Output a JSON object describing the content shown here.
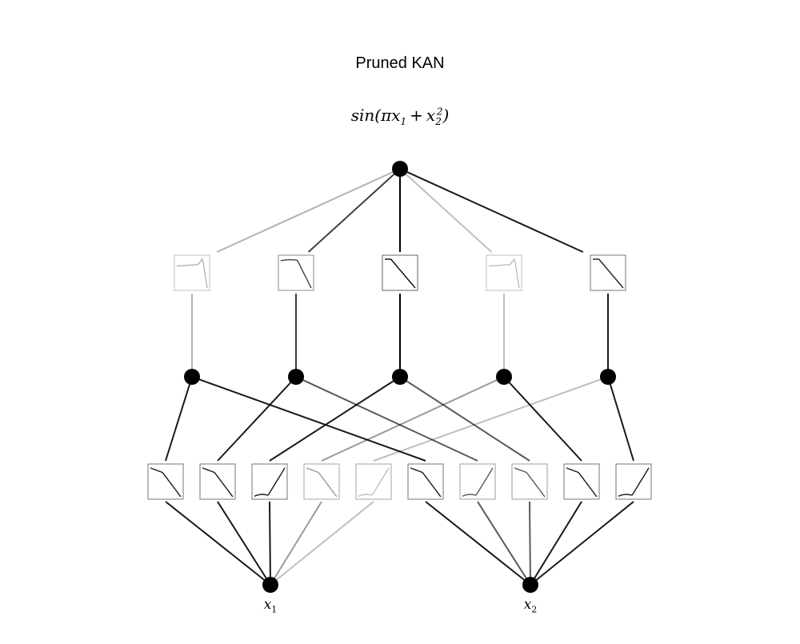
{
  "title": "Pruned KAN",
  "formula": {
    "func": "sin",
    "open": "(",
    "pi": "π",
    "var1": "x",
    "sub1": "1",
    "plus": "+",
    "var2": "x",
    "sub2": "2",
    "sup2": "2",
    "close": ")"
  },
  "inputs": [
    {
      "symbol": "x",
      "subscript": "1"
    },
    {
      "symbol": "x",
      "subscript": "2"
    }
  ],
  "network": {
    "layers": [
      2,
      5,
      1
    ],
    "layer1_edges": [
      {
        "from": 0,
        "to": 0,
        "shape": "decreasing",
        "opacity": 0.9
      },
      {
        "from": 0,
        "to": 1,
        "shape": "decreasing",
        "opacity": 0.9
      },
      {
        "from": 0,
        "to": 2,
        "shape": "increasing",
        "opacity": 0.9
      },
      {
        "from": 0,
        "to": 3,
        "shape": "decreasing",
        "opacity": 0.4
      },
      {
        "from": 0,
        "to": 4,
        "shape": "increasing",
        "opacity": 0.25
      },
      {
        "from": 1,
        "to": 0,
        "shape": "decreasing",
        "opacity": 0.9
      },
      {
        "from": 1,
        "to": 1,
        "shape": "increasing",
        "opacity": 0.65
      },
      {
        "from": 1,
        "to": 2,
        "shape": "decreasing",
        "opacity": 0.65
      },
      {
        "from": 1,
        "to": 3,
        "shape": "decreasing",
        "opacity": 0.9
      },
      {
        "from": 1,
        "to": 4,
        "shape": "increasing",
        "opacity": 0.9
      }
    ],
    "layer2_edges": [
      {
        "from": 0,
        "to": 0,
        "shape": "bump-drop",
        "opacity": 0.3
      },
      {
        "from": 1,
        "to": 0,
        "shape": "plateau-drop",
        "opacity": 0.75
      },
      {
        "from": 2,
        "to": 0,
        "shape": "linear-down",
        "opacity": 1.0
      },
      {
        "from": 3,
        "to": 0,
        "shape": "bump-drop",
        "opacity": 0.25
      },
      {
        "from": 4,
        "to": 0,
        "shape": "linear-down",
        "opacity": 0.9
      }
    ]
  }
}
